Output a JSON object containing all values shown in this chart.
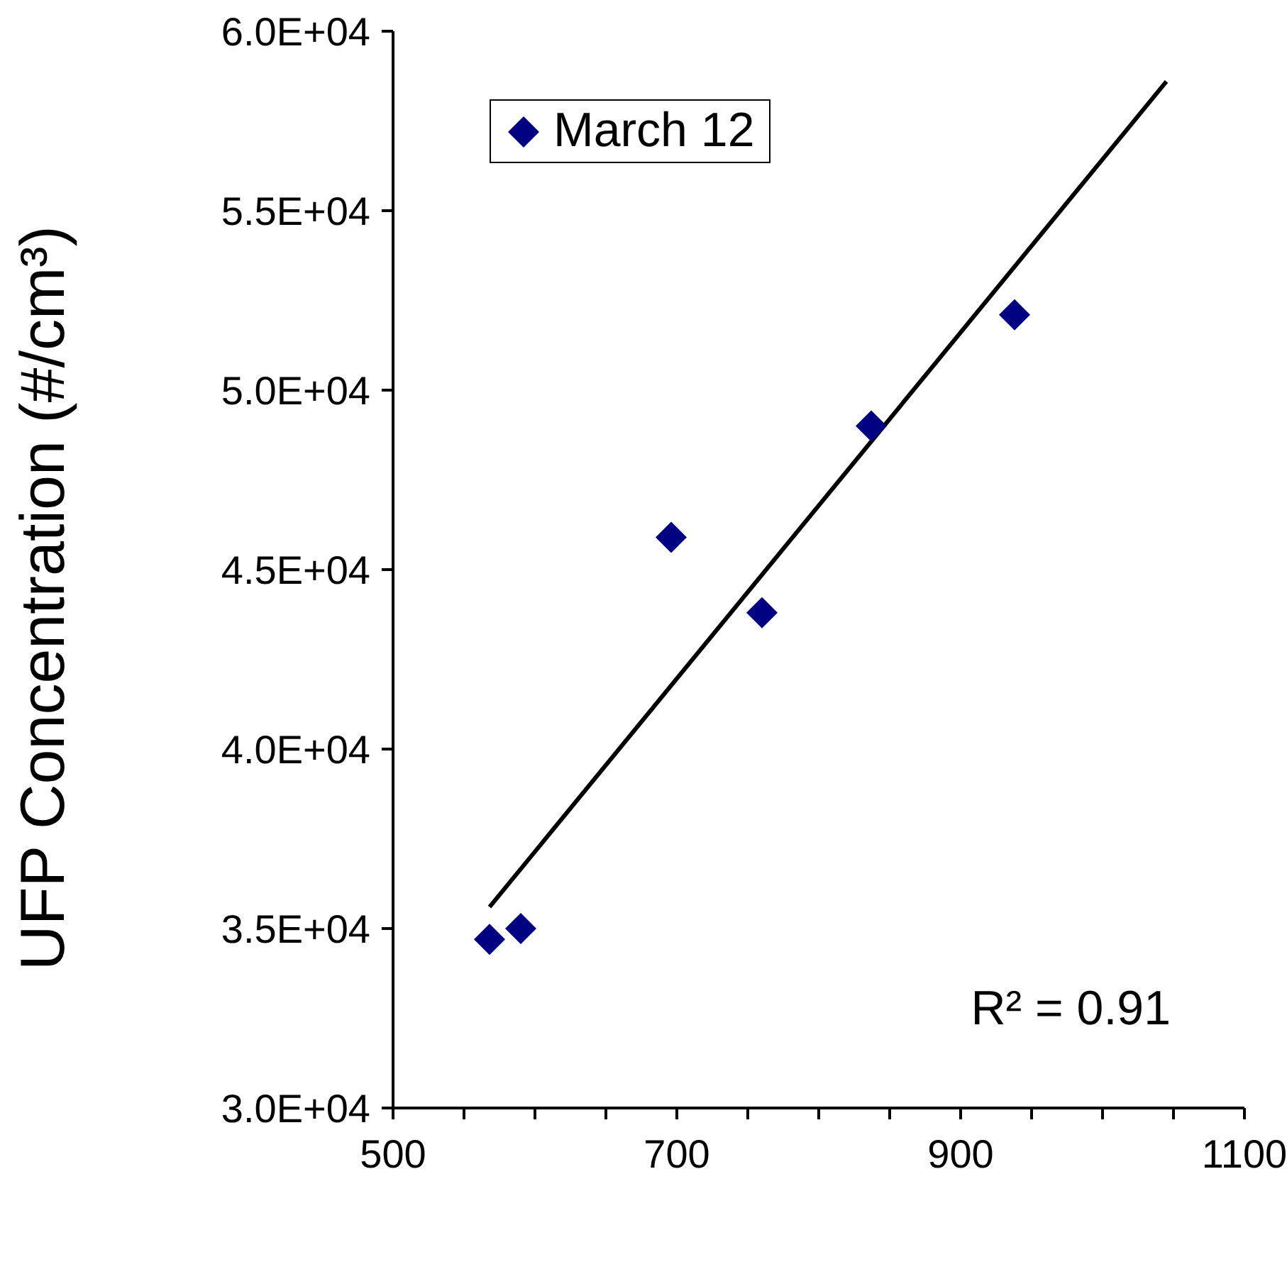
{
  "chart_data": {
    "type": "scatter",
    "ylabel": "UFP Concentration (#/cm³)",
    "series": [
      {
        "name": "March 12",
        "color": "#000080",
        "marker": "diamond",
        "x": [
          568,
          590,
          696,
          760,
          837,
          938
        ],
        "values": [
          34700,
          35000,
          45900,
          43800,
          49000,
          52100
        ]
      },
      {
        "type": "line",
        "color": "#000000",
        "marker": "none",
        "x": [
          568,
          1045
        ],
        "values": [
          35600,
          58600
        ]
      }
    ],
    "xlim": [
      500,
      1100
    ],
    "xticks": [
      500,
      {
        "value": 550,
        "label": null
      },
      {
        "value": 600,
        "label": null
      },
      {
        "value": 650,
        "label": null
      },
      700,
      {
        "value": 750,
        "label": null
      },
      {
        "value": 800,
        "label": null
      },
      {
        "value": 850,
        "label": null
      },
      900,
      {
        "value": 950,
        "label": null
      },
      {
        "value": 1000,
        "label": null
      },
      {
        "value": 1050,
        "label": null
      },
      1100
    ],
    "ylim": [
      30000,
      60000
    ],
    "yticks": [
      {
        "value": 30000,
        "label": "3.0E+04"
      },
      {
        "value": 35000,
        "label": "3.5E+04"
      },
      {
        "value": 40000,
        "label": "4.0E+04"
      },
      {
        "value": 45000,
        "label": "4.5E+04"
      },
      {
        "value": 50000,
        "label": "5.0E+04"
      },
      {
        "value": 55000,
        "label": "5.5E+04"
      },
      {
        "value": 60000,
        "label": "6.0E+04"
      }
    ],
    "annotations": [
      "R² = 0.91"
    ],
    "legend": "top left",
    "line_style": "solid",
    "grid": false
  }
}
